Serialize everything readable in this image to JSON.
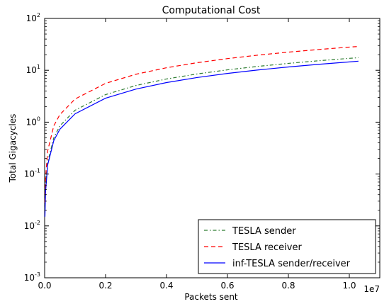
{
  "chart_data": {
    "type": "line",
    "title": "Computational Cost",
    "xlabel": "Packets sent",
    "ylabel": "Total Gigacycles",
    "x_offset_label": "1e7",
    "xlim": [
      0,
      1.1
    ],
    "ylim": [
      0.001,
      100
    ],
    "yscale": "log",
    "x_ticks": [
      "0.0",
      "0.2",
      "0.4",
      "0.6",
      "0.8",
      "1.0"
    ],
    "x_tick_values": [
      0.0,
      0.2,
      0.4,
      0.6,
      0.8,
      1.0
    ],
    "y_ticks": [
      {
        "base": "10",
        "exp": "-3",
        "value": 0.001
      },
      {
        "base": "10",
        "exp": "-2",
        "value": 0.01
      },
      {
        "base": "10",
        "exp": "-1",
        "value": 0.1
      },
      {
        "base": "10",
        "exp": "0",
        "value": 1
      },
      {
        "base": "10",
        "exp": "1",
        "value": 10
      },
      {
        "base": "10",
        "exp": "2",
        "value": 100
      }
    ],
    "grid": false,
    "legend_position": "bottom-right",
    "series": [
      {
        "name": "TESLA sender",
        "color": "#2e7d32",
        "style": "dashdot",
        "x": [
          0.001,
          0.003,
          0.01,
          0.03,
          0.05,
          0.1,
          0.2,
          0.3,
          0.4,
          0.5,
          0.6,
          0.7,
          0.8,
          0.9,
          1.0,
          1.03
        ],
        "y": [
          0.02,
          0.05,
          0.17,
          0.5,
          0.85,
          1.7,
          3.4,
          5.1,
          6.8,
          8.5,
          10.2,
          11.9,
          13.6,
          15.3,
          17.0,
          17.5
        ]
      },
      {
        "name": "TESLA receiver",
        "color": "#ff0000",
        "style": "dashed",
        "x": [
          0.001,
          0.003,
          0.01,
          0.03,
          0.05,
          0.1,
          0.2,
          0.3,
          0.4,
          0.5,
          0.6,
          0.7,
          0.8,
          0.9,
          1.0,
          1.03
        ],
        "y": [
          0.028,
          0.085,
          0.28,
          0.85,
          1.4,
          2.8,
          5.6,
          8.4,
          11.2,
          14.0,
          16.8,
          19.6,
          22.4,
          25.2,
          28.0,
          28.8
        ]
      },
      {
        "name": "inf-TESLA sender/receiver",
        "color": "#0000ff",
        "style": "solid",
        "x": [
          0.001,
          0.003,
          0.01,
          0.03,
          0.05,
          0.1,
          0.2,
          0.3,
          0.4,
          0.5,
          0.6,
          0.7,
          0.8,
          0.9,
          1.0,
          1.03
        ],
        "y": [
          0.015,
          0.045,
          0.15,
          0.44,
          0.73,
          1.45,
          2.9,
          4.35,
          5.8,
          7.25,
          8.7,
          10.15,
          11.6,
          13.05,
          14.5,
          15.0
        ]
      }
    ]
  }
}
